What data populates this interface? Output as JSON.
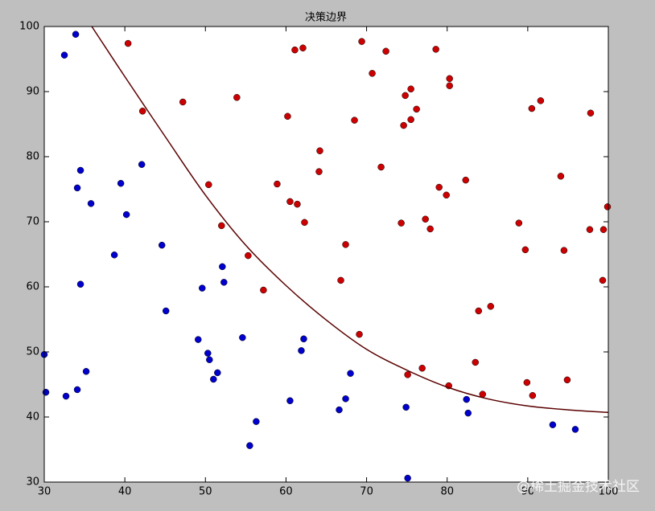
{
  "chart_data": {
    "type": "scatter",
    "title": "决策边界",
    "watermark": "@稀土掘金技术社区",
    "xlim": [
      30,
      100
    ],
    "ylim": [
      30,
      100
    ],
    "xticks": [
      30,
      40,
      50,
      60,
      70,
      80,
      90,
      100
    ],
    "yticks": [
      30,
      40,
      50,
      60,
      70,
      80,
      90,
      100
    ],
    "grid": false,
    "series": [
      {
        "mode": "markers",
        "color": "#0000cc",
        "x": [
          30.0,
          30.2,
          32.5,
          33.9,
          32.7,
          34.1,
          34.5,
          34.5,
          34.1,
          35.2,
          35.8,
          38.7,
          39.5,
          40.2,
          42.1,
          44.6,
          45.1,
          49.1,
          49.6,
          50.3,
          50.5,
          51.0,
          51.5,
          52.1,
          52.3,
          54.6,
          56.3,
          55.5,
          60.5,
          61.9,
          62.2,
          66.6,
          67.4,
          68.0,
          74.9,
          75.1,
          82.4,
          82.6,
          93.1,
          95.9
        ],
        "values": [
          49.6,
          43.8,
          95.6,
          98.8,
          43.2,
          75.2,
          77.9,
          60.4,
          44.2,
          47.0,
          72.8,
          64.9,
          75.9,
          71.1,
          78.8,
          66.4,
          56.3,
          51.9,
          59.8,
          49.8,
          48.8,
          45.8,
          46.8,
          63.1,
          60.7,
          52.2,
          39.3,
          35.6,
          42.5,
          50.2,
          52.0,
          41.1,
          42.8,
          46.7,
          41.5,
          30.6,
          42.7,
          40.6,
          38.8,
          38.1
        ]
      },
      {
        "mode": "markers",
        "color": "#cc0000",
        "x": [
          40.4,
          42.2,
          47.2,
          50.4,
          52.0,
          53.9,
          55.3,
          57.2,
          58.9,
          60.2,
          60.5,
          61.1,
          61.4,
          62.1,
          62.3,
          64.1,
          64.2,
          66.8,
          67.4,
          68.5,
          69.1,
          69.4,
          70.7,
          71.8,
          72.4,
          74.3,
          74.6,
          74.8,
          75.5,
          75.5,
          76.2,
          75.1,
          76.9,
          77.3,
          77.9,
          78.6,
          79.0,
          79.9,
          80.3,
          80.3,
          80.2,
          82.3,
          83.5,
          83.9,
          84.4,
          85.4,
          88.9,
          89.7,
          89.9,
          90.5,
          90.6,
          91.6,
          94.1,
          94.5,
          94.9,
          97.8,
          97.7,
          99.4,
          99.3,
          99.9
        ],
        "values": [
          97.4,
          87.0,
          88.4,
          75.7,
          69.4,
          89.1,
          64.8,
          59.5,
          75.8,
          86.2,
          73.1,
          96.4,
          72.7,
          96.7,
          69.9,
          77.7,
          80.9,
          61.0,
          66.5,
          85.6,
          52.7,
          97.7,
          92.8,
          78.4,
          96.2,
          69.8,
          84.8,
          89.4,
          85.7,
          90.4,
          87.3,
          46.5,
          47.5,
          70.4,
          68.9,
          96.5,
          75.3,
          74.1,
          92.0,
          90.9,
          44.8,
          76.4,
          48.4,
          56.3,
          43.5,
          57.0,
          69.8,
          65.7,
          45.3,
          87.4,
          43.3,
          88.6,
          77.0,
          65.6,
          45.7,
          86.7,
          68.8,
          68.8,
          61.0,
          72.3
        ]
      },
      {
        "mode": "line",
        "color": "#5a0000",
        "x": [
          35.9,
          40,
          45,
          50,
          55,
          60,
          65,
          70,
          75,
          80,
          85,
          90,
          95,
          100
        ],
        "values": [
          100,
          92.3,
          83.1,
          74.1,
          66.4,
          60.2,
          54.9,
          50.4,
          47.2,
          44.6,
          42.8,
          41.7,
          41.1,
          40.7
        ]
      }
    ]
  }
}
